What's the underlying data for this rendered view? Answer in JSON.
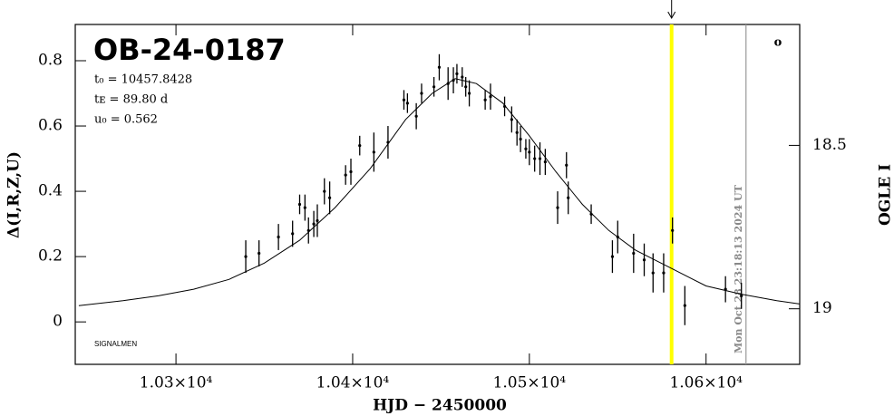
{
  "chart_data": {
    "type": "scatter",
    "title": "OB-24-0187",
    "parameters": [
      "t₀ = 10457.8428",
      "tᴇ = 89.80 d",
      "u₀ = 0.562"
    ],
    "footnote": "SIGNALMEN",
    "symbol": "o",
    "xlabel": "HJD − 2450000",
    "ylabel": "Δ(I,R,Z,U)",
    "y2label": "OGLE I",
    "xlim": [
      10243,
      10653
    ],
    "ylim": [
      -0.13,
      0.911
    ],
    "y2lim": [
      19.17,
      18.13
    ],
    "xticks": [
      {
        "value": 10300,
        "label": "1.03×10⁴"
      },
      {
        "value": 10400,
        "label": "1.04×10⁴"
      },
      {
        "value": 10500,
        "label": "1.05×10⁴"
      },
      {
        "value": 10600,
        "label": "1.06×10⁴"
      }
    ],
    "yticks": [
      0,
      0.2,
      0.4,
      0.6,
      0.8
    ],
    "y2ticks": [
      18.5,
      19
    ],
    "vlines": [
      {
        "x": 10580.5,
        "color": "#ffff00"
      },
      {
        "x": 10622.6,
        "color": "#999999",
        "label": "Mon Oct 28 23:18:13 2024 UT"
      }
    ],
    "series": [
      {
        "type": "line",
        "color": "#000000",
        "x": [
          10245,
          10270,
          10290,
          10310,
          10330,
          10350,
          10370,
          10390,
          10410,
          10430,
          10445,
          10458,
          10470,
          10485,
          10500,
          10515,
          10530,
          10545,
          10560,
          10580,
          10600,
          10620,
          10640,
          10653
        ],
        "values": [
          0.05,
          0.065,
          0.08,
          0.1,
          0.13,
          0.18,
          0.25,
          0.35,
          0.47,
          0.62,
          0.7,
          0.745,
          0.73,
          0.67,
          0.57,
          0.46,
          0.36,
          0.28,
          0.22,
          0.165,
          0.11,
          0.085,
          0.065,
          0.055
        ]
      },
      {
        "type": "errorbar",
        "color": "#000000",
        "x": [
          10339.5,
          10347,
          10358,
          10366,
          10370,
          10373,
          10375,
          10378,
          10380,
          10384,
          10387,
          10396,
          10399,
          10404,
          10412,
          10420,
          10429,
          10431,
          10436,
          10439,
          10446,
          10449,
          10454,
          10457,
          10459,
          10462,
          10464,
          10466,
          10475,
          10478,
          10486,
          10490,
          10493,
          10495,
          10498,
          10500,
          10503,
          10506,
          10509,
          10521,
          10516,
          10522,
          10535,
          10550,
          10547,
          10559,
          10565,
          10570,
          10576,
          10581,
          10588,
          10611,
          10620
        ],
        "values": [
          0.2,
          0.21,
          0.26,
          0.27,
          0.36,
          0.35,
          0.28,
          0.3,
          0.31,
          0.4,
          0.38,
          0.45,
          0.46,
          0.54,
          0.52,
          0.55,
          0.68,
          0.67,
          0.63,
          0.7,
          0.72,
          0.78,
          0.73,
          0.74,
          0.76,
          0.75,
          0.72,
          0.7,
          0.68,
          0.69,
          0.66,
          0.62,
          0.58,
          0.56,
          0.53,
          0.52,
          0.5,
          0.5,
          0.49,
          0.48,
          0.35,
          0.38,
          0.33,
          0.26,
          0.2,
          0.21,
          0.19,
          0.15,
          0.15,
          0.28,
          0.05,
          0.1,
          0.08
        ],
        "errors": [
          0.05,
          0.04,
          0.04,
          0.04,
          0.03,
          0.04,
          0.04,
          0.04,
          0.05,
          0.04,
          0.05,
          0.03,
          0.04,
          0.03,
          0.06,
          0.05,
          0.03,
          0.03,
          0.04,
          0.03,
          0.03,
          0.04,
          0.05,
          0.04,
          0.03,
          0.03,
          0.03,
          0.04,
          0.03,
          0.04,
          0.03,
          0.04,
          0.04,
          0.04,
          0.03,
          0.04,
          0.04,
          0.05,
          0.04,
          0.04,
          0.05,
          0.05,
          0.03,
          0.05,
          0.05,
          0.06,
          0.05,
          0.06,
          0.06,
          0.04,
          0.06,
          0.04,
          0.04
        ]
      }
    ]
  }
}
